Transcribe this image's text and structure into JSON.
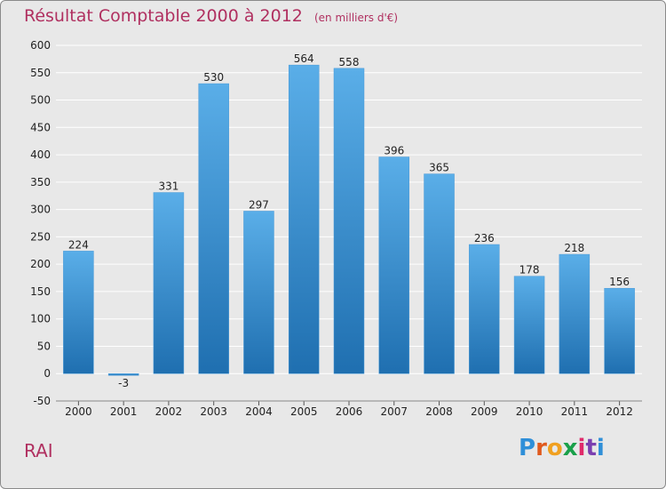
{
  "colors": {
    "title": "#b03060",
    "bar_top": "#5aaee8",
    "bar_bottom": "#1f6fb0",
    "grid": "#ffffff",
    "background": "#e8e8e8"
  },
  "commune": "RAI",
  "logo": {
    "letters": [
      "P",
      "r",
      "o",
      "x",
      "i",
      "t",
      "i"
    ],
    "colors": [
      "#2f8fd8",
      "#e05a1e",
      "#f0a020",
      "#1aa04a",
      "#e02a6a",
      "#7b3fb0",
      "#2f8fd8"
    ]
  },
  "chart_data": {
    "type": "bar",
    "title": "Résultat Comptable 2000 à 2012",
    "subtitle": "(en milliers d'€)",
    "categories": [
      "2000",
      "2001",
      "2002",
      "2003",
      "2004",
      "2005",
      "2006",
      "2007",
      "2008",
      "2009",
      "2010",
      "2011",
      "2012"
    ],
    "values": [
      224,
      -3,
      331,
      530,
      297,
      564,
      558,
      396,
      365,
      236,
      178,
      218,
      156
    ],
    "yticks": [
      -50,
      0,
      50,
      100,
      150,
      200,
      250,
      300,
      350,
      400,
      450,
      500,
      550,
      600
    ],
    "ylim": [
      -50,
      600
    ],
    "xlabel": "",
    "ylabel": "",
    "grid": true
  }
}
